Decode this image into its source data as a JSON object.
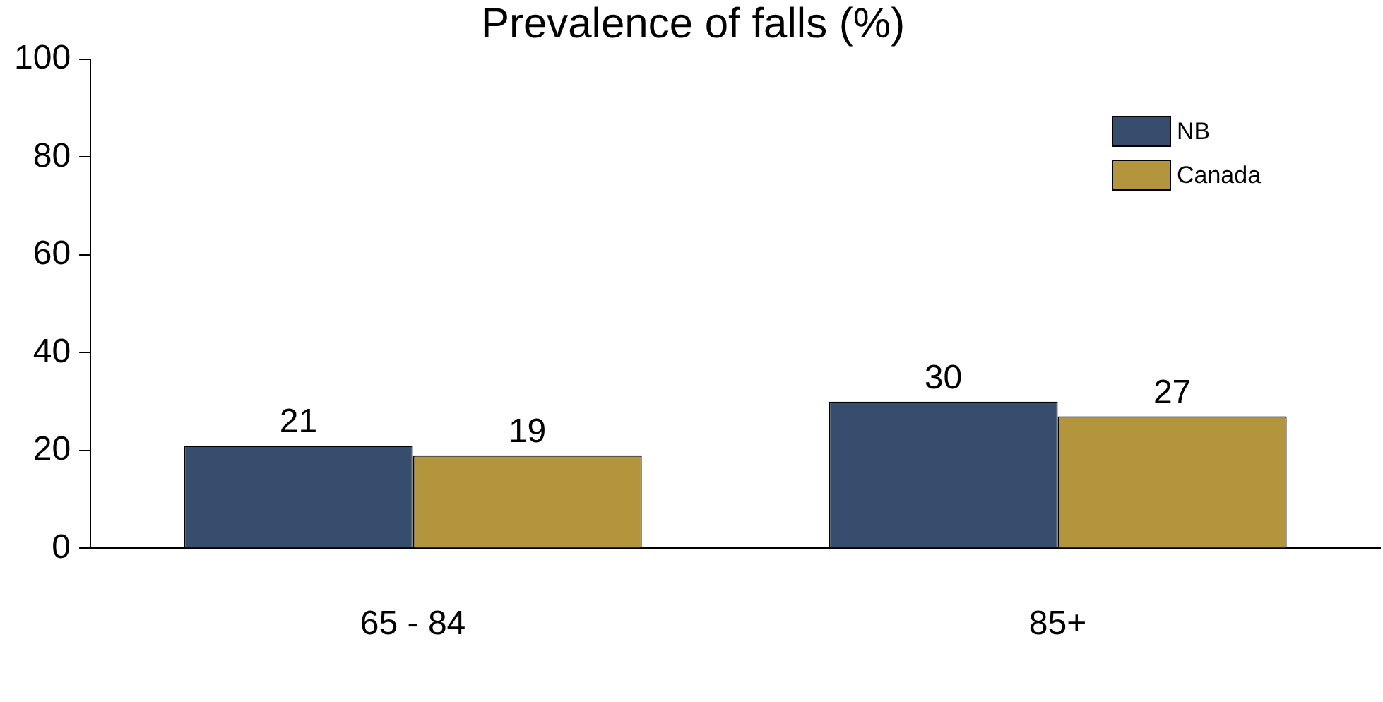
{
  "chart_data": {
    "type": "bar",
    "title": "Prevalence of falls (%)",
    "categories": [
      "65 - 84",
      "85+"
    ],
    "series": [
      {
        "name": "NB",
        "color": "#364d6d",
        "values": [
          21,
          30
        ]
      },
      {
        "name": "Canada",
        "color": "#b2953c",
        "values": [
          19,
          27
        ]
      }
    ],
    "ylim": [
      0,
      100
    ],
    "yticks": [
      0,
      20,
      40,
      60,
      80,
      100
    ],
    "grid": false,
    "legend": "top right",
    "data_labels": true
  }
}
